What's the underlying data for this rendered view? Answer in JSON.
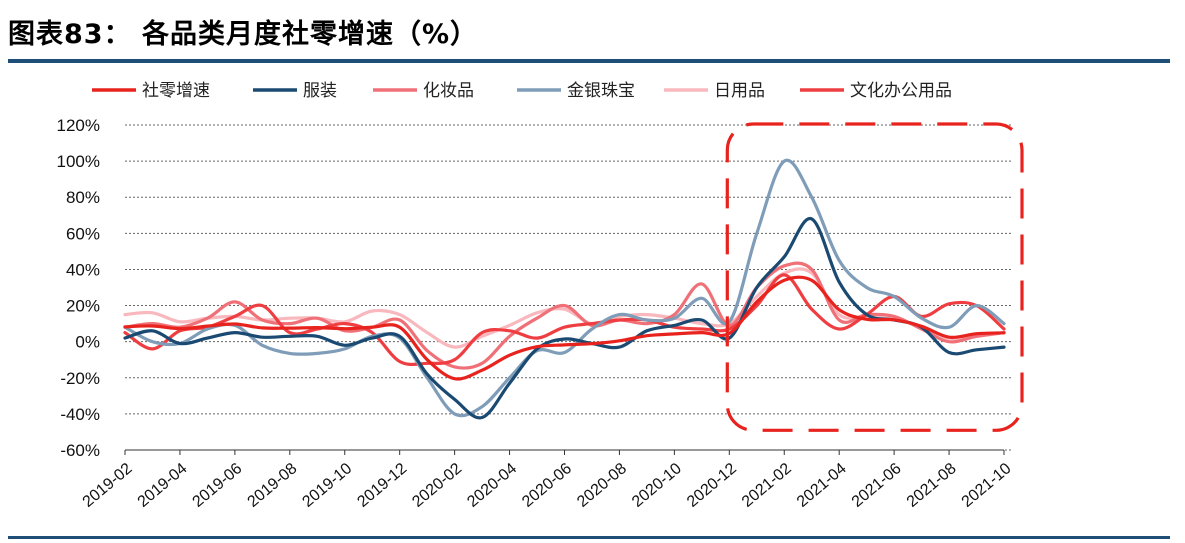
{
  "title": "图表83：  各品类月度社零增速（%）",
  "chart_data": {
    "type": "line",
    "title": "",
    "xlabel": "",
    "ylabel": "",
    "ylim": [
      -60,
      120
    ],
    "y_ticks": [
      -60,
      -40,
      -20,
      0,
      20,
      40,
      60,
      80,
      100,
      120
    ],
    "y_tick_labels": [
      "-60%",
      "-40%",
      "-20%",
      "0%",
      "20%",
      "40%",
      "60%",
      "80%",
      "100%",
      "120%"
    ],
    "grid": "horizontal-dashed",
    "legend_position": "top",
    "x": [
      "2019-02",
      "2019-03",
      "2019-04",
      "2019-05",
      "2019-06",
      "2019-07",
      "2019-08",
      "2019-09",
      "2019-10",
      "2019-11",
      "2019-12",
      "2020-01",
      "2020-02",
      "2020-03",
      "2020-04",
      "2020-05",
      "2020-06",
      "2020-07",
      "2020-08",
      "2020-09",
      "2020-10",
      "2020-11",
      "2020-12",
      "2021-01",
      "2021-02",
      "2021-03",
      "2021-04",
      "2021-05",
      "2021-06",
      "2021-07",
      "2021-08",
      "2021-09",
      "2021-10"
    ],
    "x_tick_labels": [
      "2019-02",
      "2019-04",
      "2019-06",
      "2019-08",
      "2019-10",
      "2019-12",
      "2020-02",
      "2020-04",
      "2020-06",
      "2020-08",
      "2020-10",
      "2020-12",
      "2021-02",
      "2021-04",
      "2021-06",
      "2021-08",
      "2021-10"
    ],
    "series": [
      {
        "name": "社零增速",
        "color": "#e8231e",
        "values": [
          8.2,
          8.7,
          7.2,
          8.6,
          9.8,
          7.6,
          7.5,
          7.8,
          7.2,
          8.0,
          8.0,
          -10.0,
          -20.5,
          -15.8,
          -7.5,
          -2.8,
          -1.8,
          -1.1,
          0.5,
          3.3,
          4.3,
          5.0,
          4.6,
          22.0,
          34.0,
          34.0,
          17.7,
          12.4,
          12.1,
          8.5,
          2.5,
          4.4,
          4.9
        ]
      },
      {
        "name": "服装",
        "color": "#1a4a72",
        "values": [
          2.0,
          6.0,
          -1.0,
          2.0,
          5.0,
          2.5,
          3.0,
          3.0,
          -2.0,
          2.0,
          3.0,
          -18.0,
          -32.0,
          -42.0,
          -23.0,
          -4.0,
          1.5,
          -1.0,
          -3.0,
          6.0,
          9.0,
          12.0,
          2.0,
          30.0,
          47.0,
          68.0,
          33.0,
          15.0,
          12.0,
          8.0,
          -6.0,
          -4.5,
          -3.0
        ]
      },
      {
        "name": "化妆品",
        "color": "#f07078",
        "values": [
          8.0,
          10.0,
          8.0,
          13.0,
          22.0,
          12.0,
          10.0,
          13.0,
          6.0,
          8.0,
          12.0,
          -5.0,
          -14.0,
          -12.0,
          3.0,
          13.0,
          20.0,
          9.0,
          12.0,
          10.0,
          15.0,
          32.0,
          9.0,
          30.0,
          42.0,
          40.0,
          12.0,
          15.0,
          14.0,
          7.0,
          0.0,
          3.0,
          5.0
        ]
      },
      {
        "name": "金银珠宝",
        "color": "#7f9db8",
        "values": [
          8.0,
          0.0,
          -1.0,
          7.0,
          9.0,
          -2.0,
          -6.5,
          -6.5,
          -4.0,
          3.0,
          2.0,
          -20.0,
          -40.0,
          -36.0,
          -20.0,
          -5.0,
          -6.0,
          7.0,
          15.0,
          12.0,
          13.0,
          24.0,
          11.0,
          60.0,
          100.0,
          80.0,
          45.0,
          30.0,
          25.0,
          13.0,
          8.0,
          20.0,
          10.0
        ]
      },
      {
        "name": "日用品",
        "color": "#f8b8bd",
        "values": [
          15.0,
          16.0,
          11.0,
          13.0,
          14.0,
          12.0,
          13.0,
          13.0,
          11.0,
          17.0,
          15.0,
          5.0,
          -3.0,
          3.0,
          9.0,
          16.0,
          18.0,
          10.0,
          14.0,
          15.0,
          13.0,
          10.0,
          10.0,
          25.0,
          38.0,
          38.0,
          15.0,
          14.0,
          13.0,
          8.0,
          2.0,
          3.0,
          5.0
        ]
      },
      {
        "name": "文化办公用品",
        "color": "#ef3e42",
        "values": [
          5.0,
          -4.0,
          6.0,
          8.0,
          14.0,
          20.0,
          5.0,
          7.0,
          10.0,
          5.0,
          -11.0,
          -12.0,
          -10.0,
          5.0,
          6.0,
          2.0,
          8.0,
          10.0,
          12.0,
          12.0,
          8.0,
          7.0,
          7.0,
          20.0,
          37.0,
          18.0,
          7.0,
          15.0,
          25.0,
          14.0,
          21.0,
          20.0,
          7.0
        ]
      }
    ],
    "annotation": {
      "shape": "dashed-rounded-rect",
      "color": "#e8231e",
      "x_from": "2020-12",
      "x_to": "2021-10",
      "y_from": -48,
      "y_to": 120
    }
  }
}
